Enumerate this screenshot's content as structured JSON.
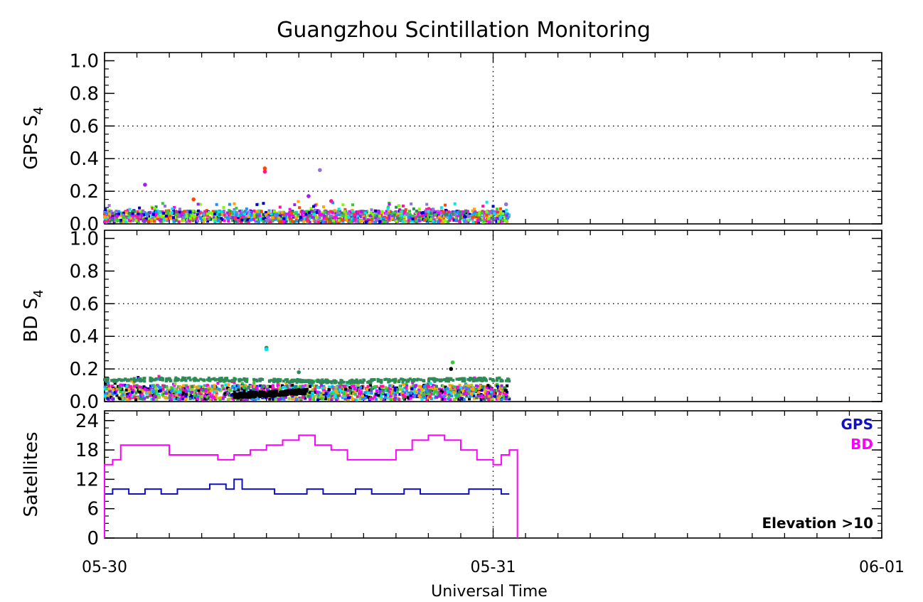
{
  "chart_data": [
    {
      "type": "scatter",
      "title": "Guangzhou Scintillation Monitoring",
      "ylabel": "GPS S4",
      "ylabel_main": "GPS S",
      "ylabel_sub": "4",
      "ylim": [
        0,
        1.05
      ],
      "yticks": [
        "0.0",
        "0.2",
        "0.4",
        "0.6",
        "0.8",
        "1.0"
      ],
      "ytick_values": [
        0,
        0.2,
        0.4,
        0.6,
        0.8,
        1.0
      ],
      "grid_y": [
        0.2,
        0.4,
        0.6
      ],
      "x_range_days": [
        "05-30",
        "06-01"
      ],
      "data_span_hours": [
        0,
        25
      ],
      "baseline_range": [
        0.01,
        0.08
      ],
      "outliers": [
        {
          "hour": 2.5,
          "y": 0.24
        },
        {
          "hour": 9.9,
          "y": 0.34
        },
        {
          "hour": 9.9,
          "y": 0.32
        },
        {
          "hour": 13.3,
          "y": 0.33
        },
        {
          "hour": 12.6,
          "y": 0.17
        },
        {
          "hour": 5.5,
          "y": 0.15
        },
        {
          "hour": 14.0,
          "y": 0.14
        },
        {
          "hour": 24.8,
          "y": 0.12
        }
      ],
      "colors": [
        "#a020f0",
        "#00e5ee",
        "#1e90ff",
        "#ff4500",
        "#32cd32",
        "#0000cd",
        "#ff1493",
        "#7cfc00",
        "#ffa500",
        "#9370db",
        "#2e8b57",
        "#ff00ff"
      ]
    },
    {
      "type": "scatter",
      "ylabel": "BD S4",
      "ylabel_main": "BD S",
      "ylabel_sub": "4",
      "ylim": [
        0,
        1.05
      ],
      "yticks": [
        "0.0",
        "0.2",
        "0.4",
        "0.6",
        "0.8",
        "1.0"
      ],
      "ytick_values": [
        0,
        0.2,
        0.4,
        0.6,
        0.8,
        1.0
      ],
      "grid_y": [
        0.2,
        0.4,
        0.6
      ],
      "x_range_days": [
        "05-30",
        "06-01"
      ],
      "data_span_hours": [
        0,
        25
      ],
      "baseline_range": [
        0.01,
        0.1
      ],
      "top_band": 0.14,
      "outliers": [
        {
          "hour": 10.0,
          "y": 0.33
        },
        {
          "hour": 10.0,
          "y": 0.32
        },
        {
          "hour": 21.5,
          "y": 0.24
        },
        {
          "hour": 21.4,
          "y": 0.2
        },
        {
          "hour": 12.0,
          "y": 0.18
        }
      ],
      "colors": [
        "#2e8b57",
        "#ffa500",
        "#1e90ff",
        "#00e5ee",
        "#a020f0",
        "#ff1493",
        "#32cd32",
        "#0000cd",
        "#daa520",
        "#000000",
        "#ff00ff",
        "#9acd32"
      ]
    },
    {
      "type": "line",
      "ylabel": "Satellites",
      "ylim": [
        0,
        26
      ],
      "yticks": [
        "0",
        "6",
        "12",
        "18",
        "24"
      ],
      "ytick_values": [
        0,
        6,
        12,
        18,
        24
      ],
      "xlabel": "Universal Time",
      "xticks": [
        "05-30",
        "05-31",
        "06-01"
      ],
      "annotation": "Elevation >10",
      "legend_position": "top-right",
      "series": [
        {
          "name": "GPS",
          "color": "#1010c0",
          "points": [
            [
              0,
              9
            ],
            [
              0.5,
              10
            ],
            [
              1.5,
              9
            ],
            [
              2.5,
              10
            ],
            [
              3.5,
              9
            ],
            [
              4.5,
              10
            ],
            [
              5.5,
              10
            ],
            [
              6.5,
              11
            ],
            [
              7.5,
              10
            ],
            [
              8,
              12
            ],
            [
              8.5,
              10
            ],
            [
              9.5,
              10
            ],
            [
              10.5,
              9
            ],
            [
              11.5,
              9
            ],
            [
              12.5,
              10
            ],
            [
              13.5,
              9
            ],
            [
              14.5,
              9
            ],
            [
              15.5,
              10
            ],
            [
              16.5,
              9
            ],
            [
              17.5,
              9
            ],
            [
              18.5,
              10
            ],
            [
              19.5,
              9
            ],
            [
              20.5,
              9
            ],
            [
              21.5,
              9
            ],
            [
              22.5,
              10
            ],
            [
              23.5,
              10
            ],
            [
              24.5,
              9
            ]
          ]
        },
        {
          "name": "BD",
          "color": "#ff00ff",
          "points": [
            [
              0,
              15
            ],
            [
              0.5,
              16
            ],
            [
              1,
              19
            ],
            [
              2,
              19
            ],
            [
              3,
              19
            ],
            [
              4,
              17
            ],
            [
              5,
              17
            ],
            [
              6,
              17
            ],
            [
              7,
              16
            ],
            [
              8,
              17
            ],
            [
              9,
              18
            ],
            [
              10,
              19
            ],
            [
              11,
              20
            ],
            [
              12,
              21
            ],
            [
              13,
              19
            ],
            [
              14,
              18
            ],
            [
              15,
              16
            ],
            [
              16,
              16
            ],
            [
              17,
              16
            ],
            [
              18,
              18
            ],
            [
              19,
              20
            ],
            [
              20,
              21
            ],
            [
              21,
              20
            ],
            [
              22,
              18
            ],
            [
              23,
              16
            ],
            [
              24,
              15
            ],
            [
              24.5,
              17
            ],
            [
              25,
              18
            ]
          ]
        }
      ]
    }
  ]
}
